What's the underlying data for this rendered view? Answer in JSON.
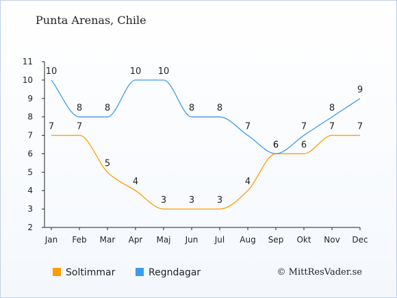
{
  "title": "Punta Arenas, Chile",
  "credit": "© MittResVader.se",
  "chart_data": {
    "type": "line",
    "categories": [
      "Jan",
      "Feb",
      "Mar",
      "Apr",
      "Maj",
      "Jun",
      "Jul",
      "Aug",
      "Sep",
      "Okt",
      "Nov",
      "Dec"
    ],
    "ylim": [
      2,
      11
    ],
    "yticks": [
      "2",
      "3",
      "4",
      "5",
      "6",
      "7",
      "8",
      "9",
      "10",
      "11"
    ],
    "grid": false,
    "legend_position": "bottom",
    "series": [
      {
        "name": "Soltimmar",
        "color": "#ff9c00",
        "values": [
          7,
          7,
          5,
          4,
          3,
          3,
          3,
          4,
          6,
          6,
          7,
          7
        ]
      },
      {
        "name": "Regndagar",
        "color": "#3d9be9",
        "values": [
          10,
          8,
          8,
          10,
          10,
          8,
          8,
          7,
          6,
          7,
          8,
          9
        ]
      }
    ]
  }
}
